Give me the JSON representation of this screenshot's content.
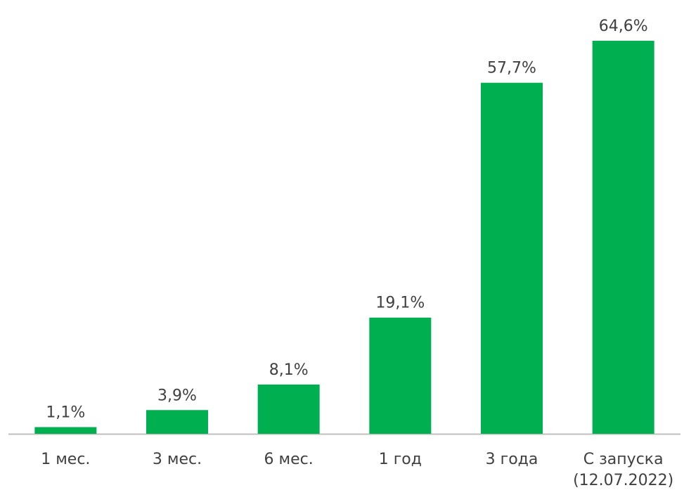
{
  "chart_data": {
    "type": "bar",
    "categories": [
      "1 мес.",
      "3 мес.",
      "6 мес.",
      "1 год",
      "3 года",
      "С запуска (12.07.2022)"
    ],
    "values": [
      1.1,
      3.9,
      8.1,
      19.1,
      57.7,
      64.6
    ],
    "value_labels": [
      "1,1%",
      "3,9%",
      "8,1%",
      "19,1%",
      "57,7%",
      "64,6%"
    ],
    "color": "#00b050"
  }
}
